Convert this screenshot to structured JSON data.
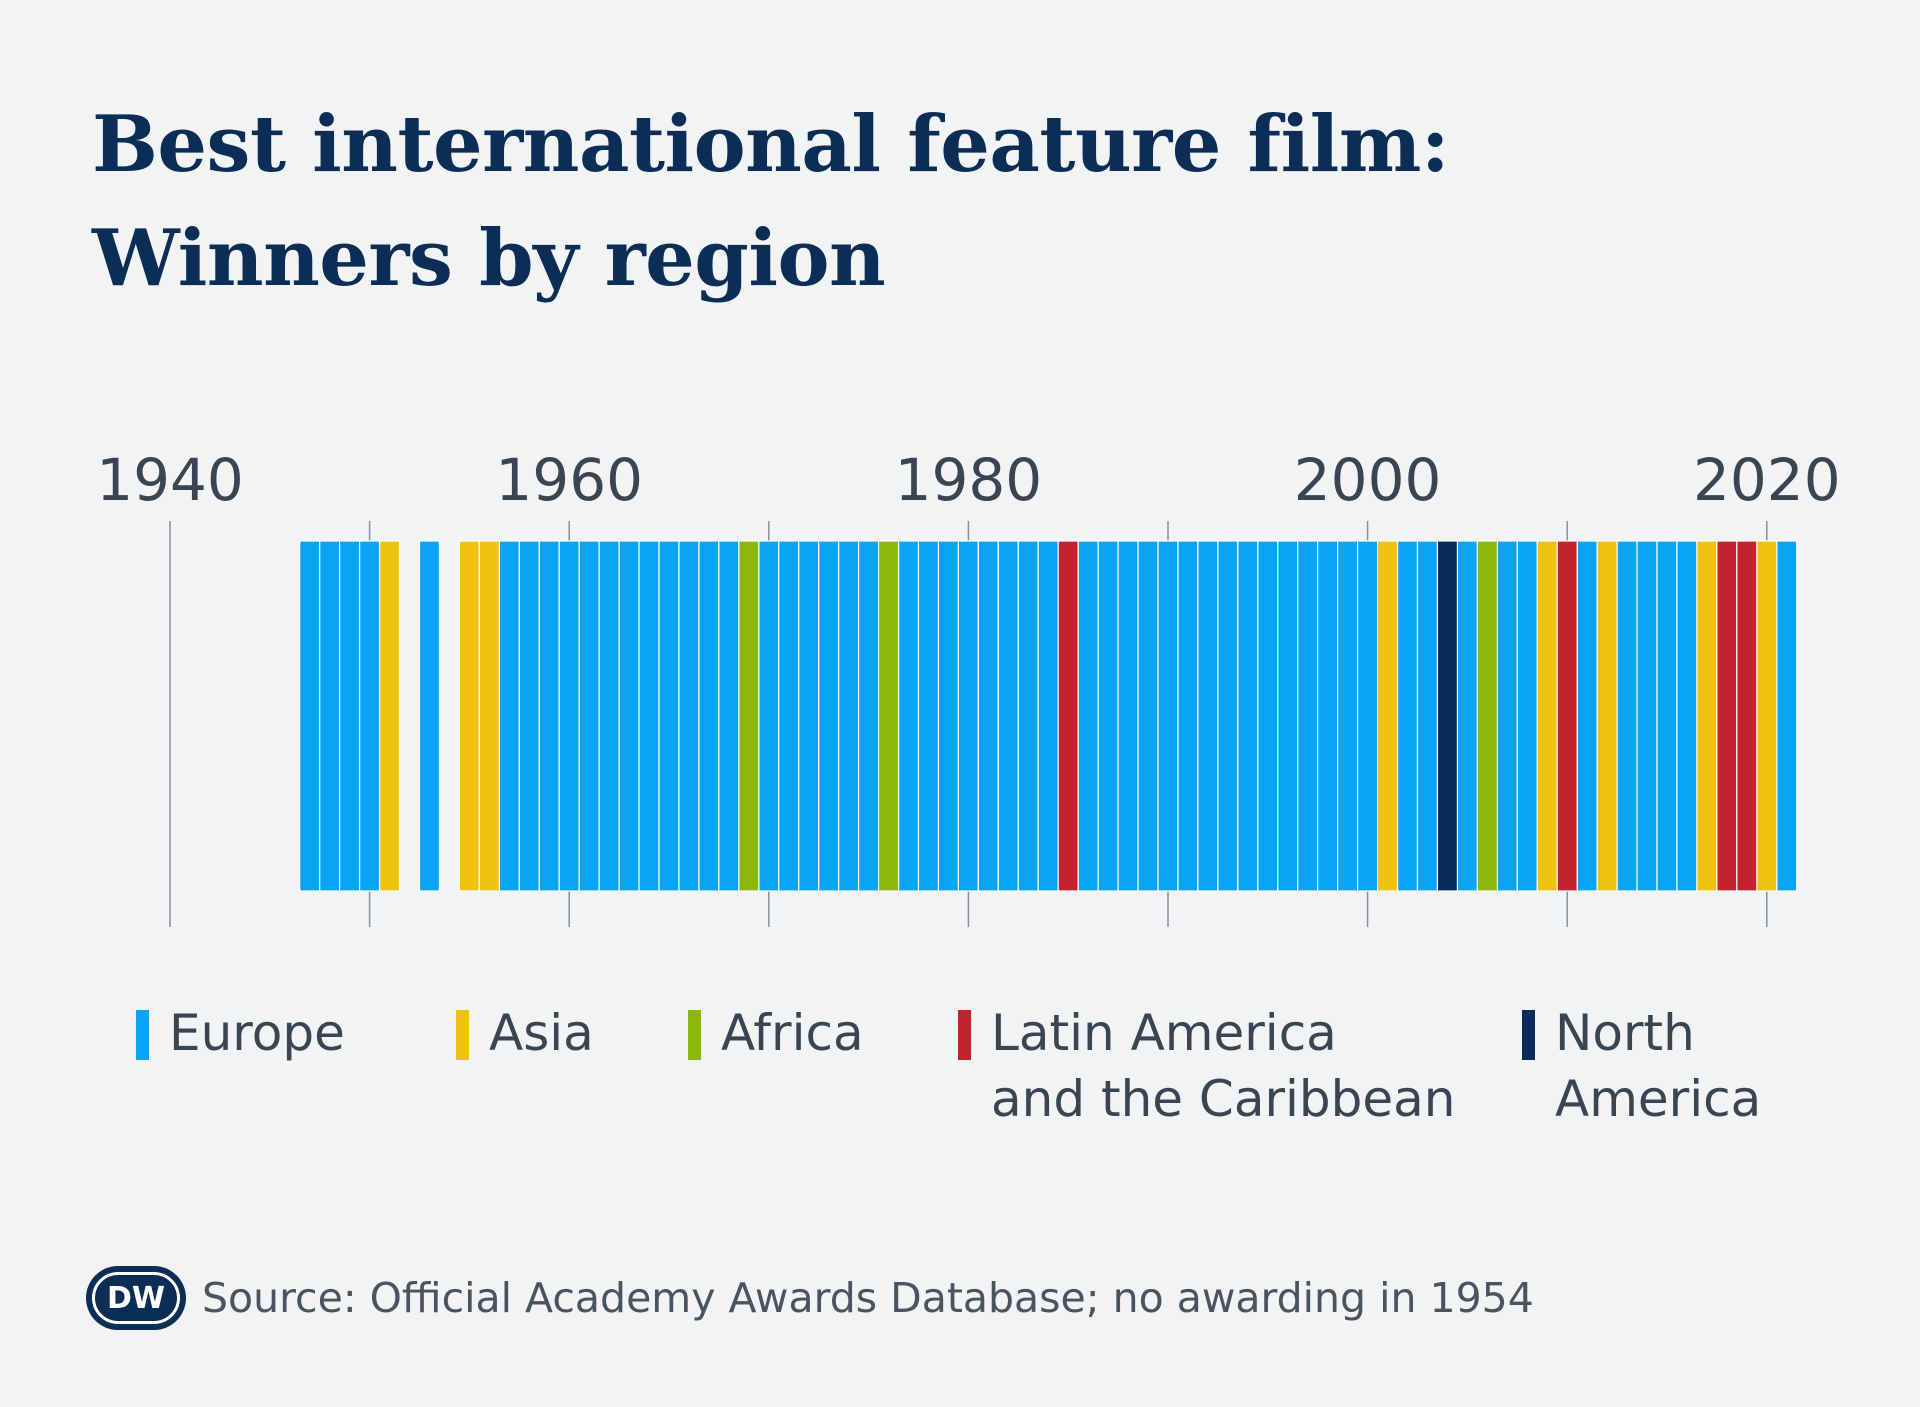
{
  "title_line1": "Best international feature film:",
  "title_line2": "Winners by region",
  "source": "Source: Official Academy Awards Database; no awarding in 1954",
  "logo_text": "DW",
  "colors": {
    "Europe": "#0aa4f5",
    "Asia": "#efc20f",
    "Africa": "#8ab90c",
    "Latin America and the Caribbean": "#c4222e",
    "North America": "#082b59",
    "axis": "#8a8f96",
    "background": "#f1f3f5"
  },
  "legend": [
    {
      "region": "Europe",
      "label": "Europe"
    },
    {
      "region": "Asia",
      "label": "Asia"
    },
    {
      "region": "Africa",
      "label": "Africa"
    },
    {
      "region": "Latin America and the Caribbean",
      "label": "Latin America\nand the Caribbean"
    },
    {
      "region": "North America",
      "label": "North\nAmerica"
    }
  ],
  "chart_data": {
    "type": "bar",
    "title": "Best international feature film: Winners by region",
    "x_ticks": [
      1940,
      1960,
      1980,
      2000,
      2020
    ],
    "xlim": [
      1940,
      2022
    ],
    "grid": true,
    "legend_position": "bottom",
    "note": "no awarding in 1954",
    "series": [
      {
        "name": "Europe",
        "years": [
          1947,
          1948,
          1949,
          1950,
          1953,
          1956,
          1957,
          1958,
          1959,
          1960,
          1961,
          1962,
          1963,
          1964,
          1965,
          1966,
          1967,
          1968,
          1970,
          1971,
          1972,
          1973,
          1974,
          1975,
          1977,
          1978,
          1979,
          1980,
          1981,
          1982,
          1983,
          1984,
          1986,
          1987,
          1988,
          1989,
          1990,
          1991,
          1992,
          1993,
          1994,
          1995,
          1996,
          1997,
          1998,
          1999,
          2000,
          2002,
          2003,
          2005,
          2007,
          2008,
          2011,
          2013,
          2014,
          2015,
          2016,
          2021
        ]
      },
      {
        "name": "Asia",
        "years": [
          1951,
          1955,
          1956,
          2001,
          2009,
          2012,
          2017,
          2020
        ]
      },
      {
        "name": "Africa",
        "years": [
          1969,
          1976,
          2006
        ]
      },
      {
        "name": "Latin America and the Caribbean",
        "years": [
          1985,
          2010,
          2018,
          2019
        ]
      },
      {
        "name": "North America",
        "years": [
          2004
        ]
      }
    ]
  }
}
